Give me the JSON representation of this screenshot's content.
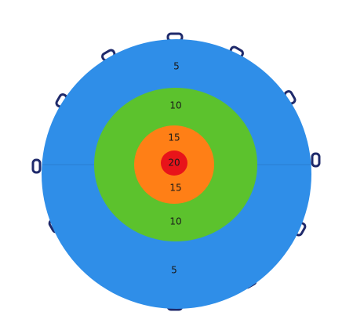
{
  "target": {
    "labels": [
      5,
      10,
      15,
      20,
      15,
      10,
      5
    ]
  }
}
